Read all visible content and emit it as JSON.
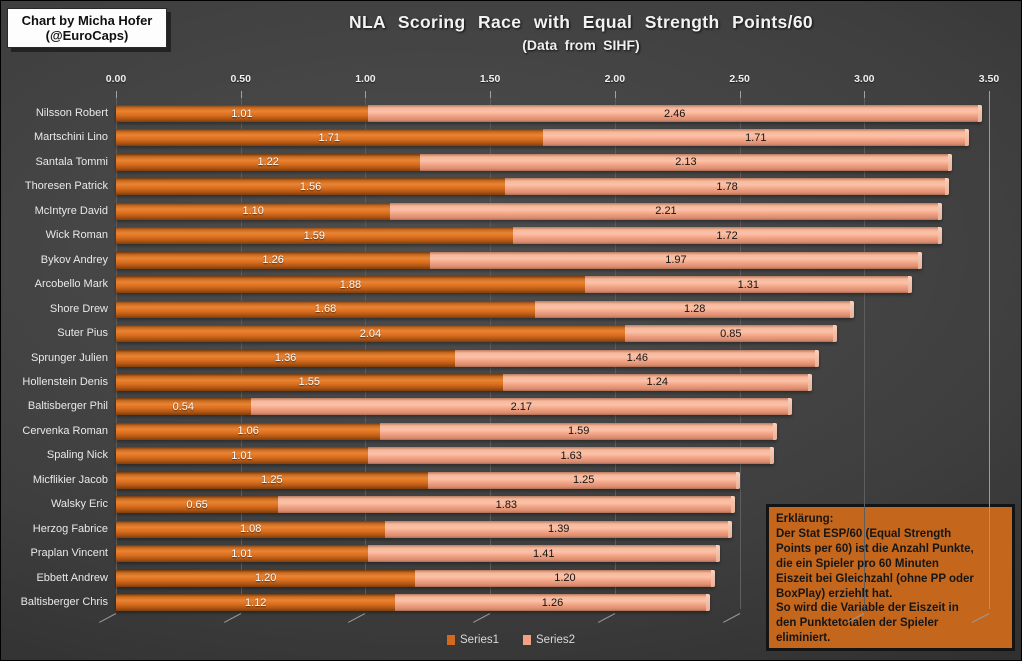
{
  "credit_box": {
    "line1": "Chart by Micha Hofer",
    "line2": "(@EuroCaps)"
  },
  "title": "NLA Scoring Race with Equal Strength Points/60",
  "subtitle": "(Data from SIHF)",
  "annotation": {
    "lines": [
      "Erklärung:",
      "Der Stat ESP/60 (Equal Strength",
      "Points per 60) ist die Anzahl Punkte,",
      "die ein Spieler pro 60 Minuten",
      "Eiszeit bei Gleichzahl (ohne PP oder",
      "BoxPlay) erziehlt hat.",
      "So wird die Variable der Eiszeit in",
      "den Punktetotalen der Spieler",
      "eliminiert."
    ],
    "background_color": "#C4671C",
    "border_color": "#141414"
  },
  "colors": {
    "series1": "#D2691E",
    "series2": "#F2A183",
    "background_center": "#4F4F4F",
    "background_edge": "#262626",
    "gridline": "#5E5E5E"
  },
  "chart_data": {
    "type": "bar",
    "orientation": "horizontal",
    "stacked": true,
    "title": "NLA Scoring Race with Equal Strength Points/60",
    "subtitle": "(Data from SIHF)",
    "xlabel": "",
    "ylabel": "",
    "xlim": [
      0,
      3.5
    ],
    "xticks": [
      "0.00",
      "0.50",
      "1.00",
      "1.50",
      "2.00",
      "2.50",
      "3.00",
      "3.50"
    ],
    "grid": true,
    "legend_position": "bottom",
    "categories": [
      "Nilsson Robert",
      "Martschini Lino",
      "Santala Tommi",
      "Thoresen Patrick",
      "McIntyre David",
      "Wick Roman",
      "Bykov Andrey",
      "Arcobello Mark",
      "Shore Drew",
      "Suter Pius",
      "Sprunger Julien",
      "Hollenstein Denis",
      "Baltisberger Phil",
      "Cervenka Roman",
      "Spaling Nick",
      "Micflikier Jacob",
      "Walsky Eric",
      "Herzog Fabrice",
      "Praplan Vincent",
      "Ebbett Andrew",
      "Baltisberger Chris"
    ],
    "series": [
      {
        "name": "Series1",
        "color": "#D2691E",
        "values": [
          1.01,
          1.71,
          1.22,
          1.56,
          1.1,
          1.59,
          1.26,
          1.88,
          1.68,
          2.04,
          1.36,
          1.55,
          0.54,
          1.06,
          1.01,
          1.25,
          0.65,
          1.08,
          1.01,
          1.2,
          1.12
        ]
      },
      {
        "name": "Series2",
        "color": "#F2A183",
        "values": [
          2.46,
          1.71,
          2.13,
          1.78,
          2.21,
          1.72,
          1.97,
          1.31,
          1.28,
          0.85,
          1.46,
          1.24,
          2.17,
          1.59,
          1.63,
          1.25,
          1.83,
          1.39,
          1.41,
          1.2,
          1.26
        ]
      }
    ]
  }
}
